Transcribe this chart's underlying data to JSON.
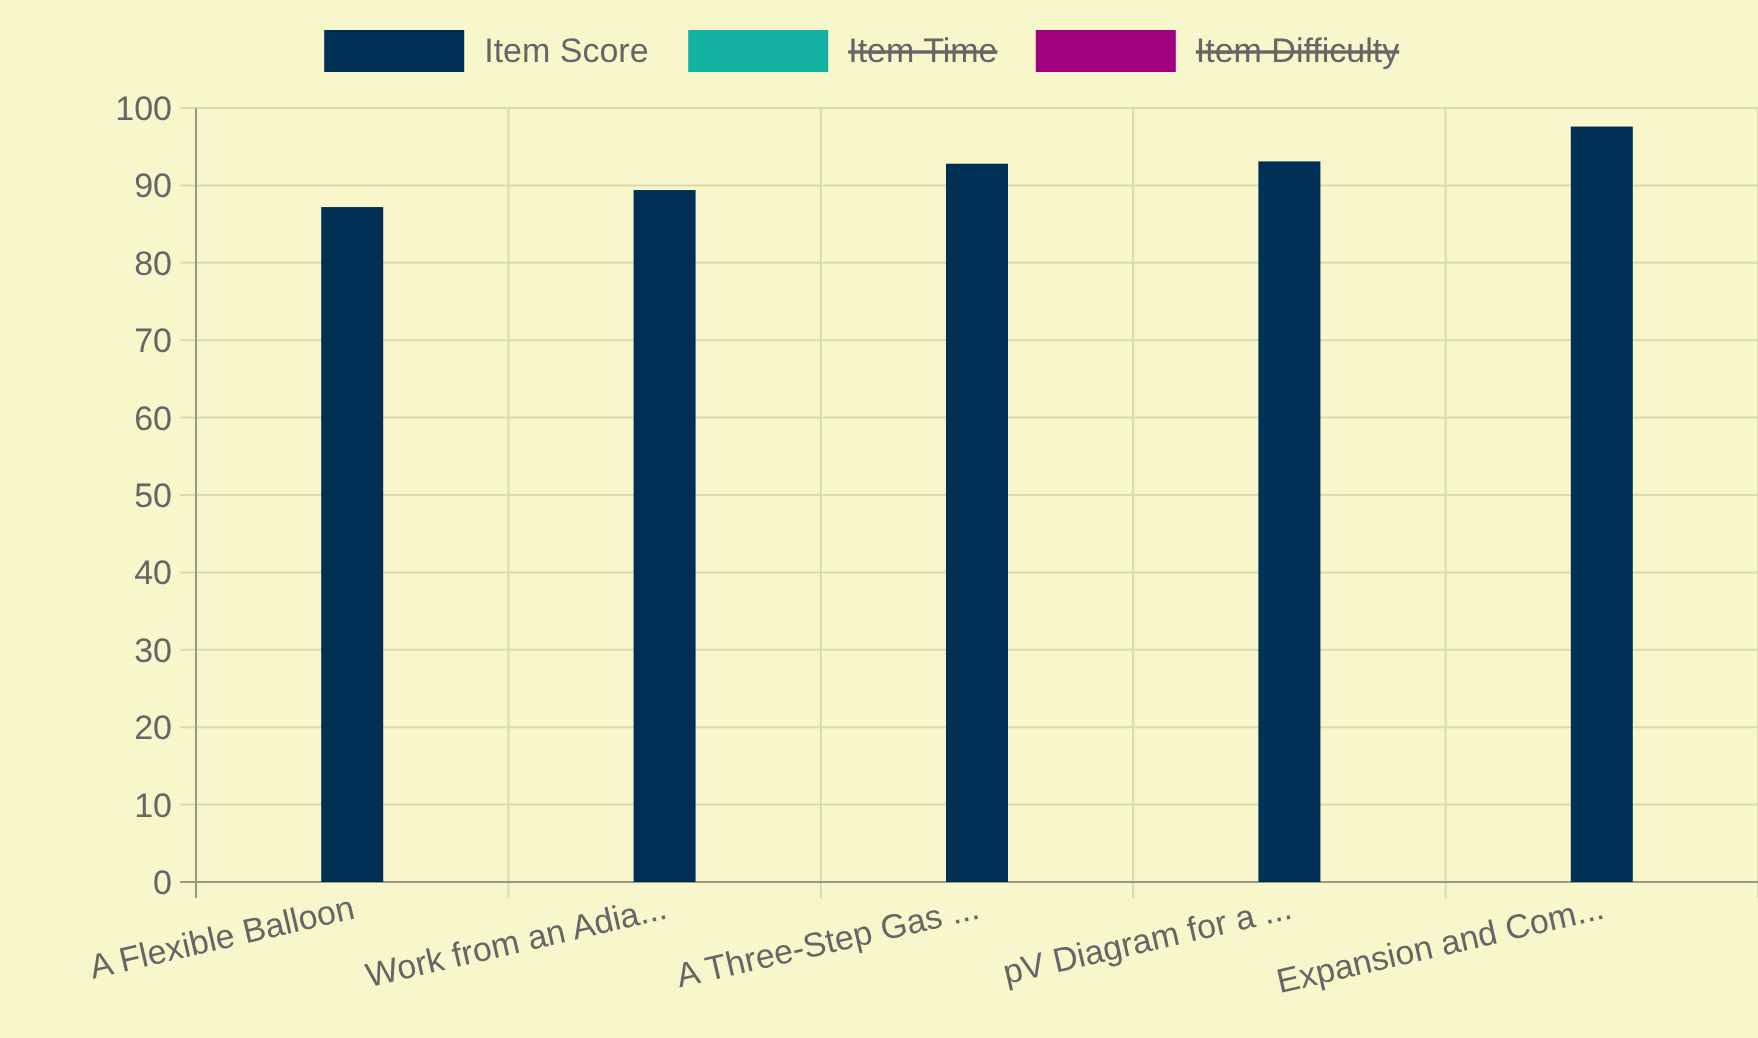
{
  "chart_data": {
    "type": "bar",
    "categories": [
      "A Flexible Balloon",
      "Work from an Adia...",
      "A Three-Step Gas ...",
      "pV Diagram for a ...",
      "Expansion and Com..."
    ],
    "series": [
      {
        "name": "Item Score",
        "color": "#002f56",
        "values": [
          87.2,
          89.4,
          92.8,
          93.1,
          97.6
        ]
      },
      {
        "name": "Item Time",
        "color": "#14b2a3",
        "values": [
          null,
          null,
          null,
          null,
          null
        ]
      },
      {
        "name": "Item Difficulty",
        "color": "#a3007f",
        "values": [
          null,
          null,
          null,
          null,
          null
        ]
      }
    ],
    "ylim": [
      0,
      100
    ],
    "yticks": [
      0,
      10,
      20,
      30,
      40,
      50,
      60,
      70,
      80,
      90,
      100
    ],
    "grid": true,
    "legend": "top"
  }
}
